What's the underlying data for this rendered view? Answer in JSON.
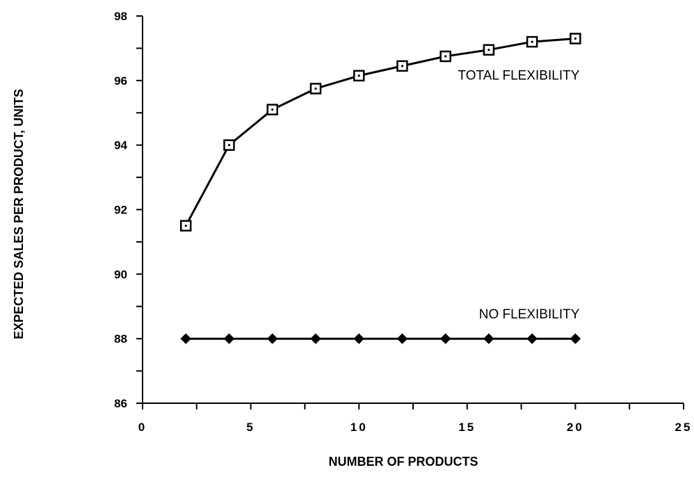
{
  "chart_data": {
    "type": "line",
    "xlabel": "NUMBER OF PRODUCTS",
    "ylabel": "EXPECTED SALES PER PRODUCT, UNITS",
    "xlim": [
      0,
      25
    ],
    "ylim": [
      86,
      98
    ],
    "xticks": [
      0,
      5,
      10,
      15,
      20,
      25
    ],
    "yticks": [
      86,
      88,
      90,
      92,
      94,
      96,
      98
    ],
    "grid": false,
    "series": [
      {
        "name": "TOTAL FLEXIBILITY",
        "marker": "square",
        "x": [
          2,
          4,
          6,
          8,
          10,
          12,
          14,
          16,
          18,
          20
        ],
        "y": [
          91.5,
          94.0,
          95.1,
          95.75,
          96.15,
          96.45,
          96.75,
          96.95,
          97.2,
          97.3
        ]
      },
      {
        "name": "NO FLEXIBILITY",
        "marker": "diamond",
        "x": [
          2,
          4,
          6,
          8,
          10,
          12,
          14,
          16,
          18,
          20
        ],
        "y": [
          88,
          88,
          88,
          88,
          88,
          88,
          88,
          88,
          88,
          88
        ]
      }
    ]
  }
}
